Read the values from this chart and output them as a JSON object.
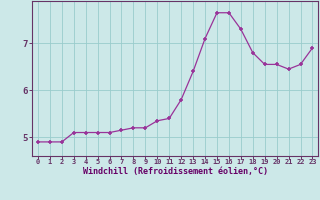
{
  "x": [
    0,
    1,
    2,
    3,
    4,
    5,
    6,
    7,
    8,
    9,
    10,
    11,
    12,
    13,
    14,
    15,
    16,
    17,
    18,
    19,
    20,
    21,
    22,
    23
  ],
  "y": [
    4.9,
    4.9,
    4.9,
    5.1,
    5.1,
    5.1,
    5.1,
    5.15,
    5.2,
    5.2,
    5.35,
    5.4,
    5.8,
    6.4,
    7.1,
    7.65,
    7.65,
    7.3,
    6.8,
    6.55,
    6.55,
    6.45,
    6.55,
    6.9
  ],
  "xlabel": "Windchill (Refroidissement éolien,°C)",
  "xlim": [
    -0.5,
    23.5
  ],
  "ylim": [
    4.6,
    7.9
  ],
  "yticks": [
    5,
    6,
    7
  ],
  "xtick_labels": [
    "0",
    "1",
    "2",
    "3",
    "4",
    "5",
    "6",
    "7",
    "8",
    "9",
    "10",
    "11",
    "12",
    "13",
    "14",
    "15",
    "16",
    "17",
    "18",
    "19",
    "20",
    "21",
    "22",
    "23"
  ],
  "line_color": "#993399",
  "marker_color": "#993399",
  "bg_color": "#cce8e8",
  "grid_color": "#99cccc",
  "axis_color": "#663366",
  "label_color": "#660066",
  "tick_label_color": "#660066"
}
